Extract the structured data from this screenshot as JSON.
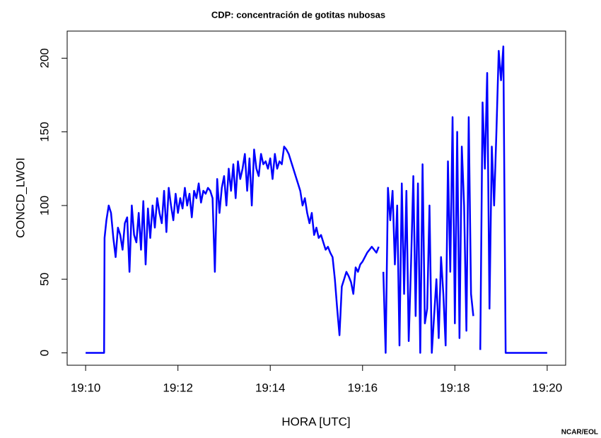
{
  "chart_data": {
    "type": "line",
    "title": "CDP: concentración de gotitas nubosas",
    "xlabel": "HORA [UTC]",
    "ylabel": "CONCD_LWOI",
    "credit": "NCAR/EOL",
    "color": "#0000ff",
    "xlim": [
      1149.6,
      1160.4
    ],
    "ylim": [
      -8.4,
      218.4
    ],
    "xticks": [
      {
        "value": 1150,
        "label": "19:10"
      },
      {
        "value": 1152,
        "label": "19:12"
      },
      {
        "value": 1154,
        "label": "19:14"
      },
      {
        "value": 1156,
        "label": "19:16"
      },
      {
        "value": 1158,
        "label": "19:18"
      },
      {
        "value": 1160,
        "label": "19:20"
      }
    ],
    "yticks": [
      0,
      50,
      100,
      150,
      200
    ],
    "x": [
      1150,
      1150.4,
      1150.41,
      1150.45,
      1150.5,
      1150.55,
      1150.6,
      1150.65,
      1150.7,
      1150.75,
      1150.8,
      1150.85,
      1150.9,
      1150.95,
      1151,
      1151.05,
      1151.1,
      1151.15,
      1151.2,
      1151.25,
      1151.3,
      1151.35,
      1151.4,
      1151.45,
      1151.5,
      1151.55,
      1151.6,
      1151.65,
      1151.7,
      1151.75,
      1151.8,
      1151.85,
      1151.9,
      1151.95,
      1152,
      1152.05,
      1152.1,
      1152.15,
      1152.2,
      1152.25,
      1152.3,
      1152.35,
      1152.4,
      1152.45,
      1152.5,
      1152.55,
      1152.6,
      1152.65,
      1152.7,
      1152.75,
      1152.8,
      1152.85,
      1152.9,
      1152.95,
      1153,
      1153.05,
      1153.1,
      1153.15,
      1153.2,
      1153.25,
      1153.3,
      1153.35,
      1153.4,
      1153.45,
      1153.5,
      1153.55,
      1153.6,
      1153.65,
      1153.7,
      1153.75,
      1153.8,
      1153.85,
      1153.9,
      1153.95,
      1154,
      1154.05,
      1154.1,
      1154.15,
      1154.2,
      1154.25,
      1154.3,
      1154.35,
      1154.4,
      1154.45,
      1154.5,
      1154.55,
      1154.6,
      1154.65,
      1154.7,
      1154.75,
      1154.8,
      1154.85,
      1154.9,
      1154.95,
      1155,
      1155.05,
      1155.1,
      1155.15,
      1155.2,
      1155.25,
      1155.3,
      1155.35,
      1155.4,
      1155.45,
      1155.5,
      1155.55,
      1155.6,
      1155.65,
      1155.7,
      1155.75,
      1155.8,
      1155.85,
      1155.9,
      1155.95,
      1156,
      1156.05,
      1156.1,
      1156.15,
      1156.2,
      1156.25,
      1156.3,
      1156.35,
      1156.4,
      1156.45,
      1156.5,
      1156.55,
      1156.6,
      1156.65,
      1156.7,
      1156.75,
      1156.8,
      1156.85,
      1156.9,
      1156.95,
      1157,
      1157.05,
      1157.1,
      1157.15,
      1157.2,
      1157.25,
      1157.3,
      1157.35,
      1157.4,
      1157.45,
      1157.5,
      1157.55,
      1157.6,
      1157.65,
      1157.7,
      1157.75,
      1157.8,
      1157.85,
      1157.9,
      1157.95,
      1158,
      1158.05,
      1158.1,
      1158.15,
      1158.2,
      1158.25,
      1158.3,
      1158.35,
      1158.4,
      1158.45,
      1158.5,
      1158.55,
      1158.6,
      1158.65,
      1158.7,
      1158.75,
      1158.8,
      1158.85,
      1158.9,
      1158.95,
      1159,
      1159.05,
      1159.1,
      1160
    ],
    "values": [
      0,
      0,
      78,
      90,
      100,
      95,
      78,
      65,
      85,
      80,
      70,
      88,
      92,
      55,
      100,
      80,
      75,
      95,
      70,
      103,
      60,
      98,
      78,
      100,
      85,
      105,
      95,
      88,
      110,
      82,
      112,
      100,
      90,
      108,
      95,
      105,
      98,
      112,
      100,
      108,
      92,
      110,
      105,
      115,
      102,
      110,
      108,
      112,
      110,
      105,
      55,
      118,
      95,
      112,
      120,
      100,
      125,
      110,
      128,
      105,
      130,
      118,
      125,
      135,
      110,
      132,
      100,
      138,
      125,
      120,
      135,
      128,
      130,
      125,
      132,
      118,
      135,
      125,
      130,
      128,
      140,
      138,
      135,
      130,
      125,
      120,
      115,
      110,
      100,
      105,
      95,
      88,
      95,
      80,
      85,
      78,
      80,
      75,
      70,
      72,
      68,
      65,
      50,
      30,
      12,
      45,
      50,
      55,
      52,
      48,
      40,
      58,
      55,
      60,
      62,
      65,
      68,
      70,
      72,
      70,
      68,
      72,
      null,
      55,
      0,
      112,
      90,
      110,
      60,
      100,
      5,
      115,
      40,
      110,
      8,
      60,
      120,
      25,
      115,
      0,
      128,
      20,
      30,
      100,
      0,
      25,
      50,
      10,
      65,
      40,
      5,
      130,
      55,
      160,
      20,
      150,
      10,
      140,
      100,
      15,
      160,
      40,
      25,
      null,
      null,
      2,
      170,
      125,
      190,
      30,
      140,
      100,
      150,
      205,
      185,
      208,
      0,
      0
    ]
  }
}
